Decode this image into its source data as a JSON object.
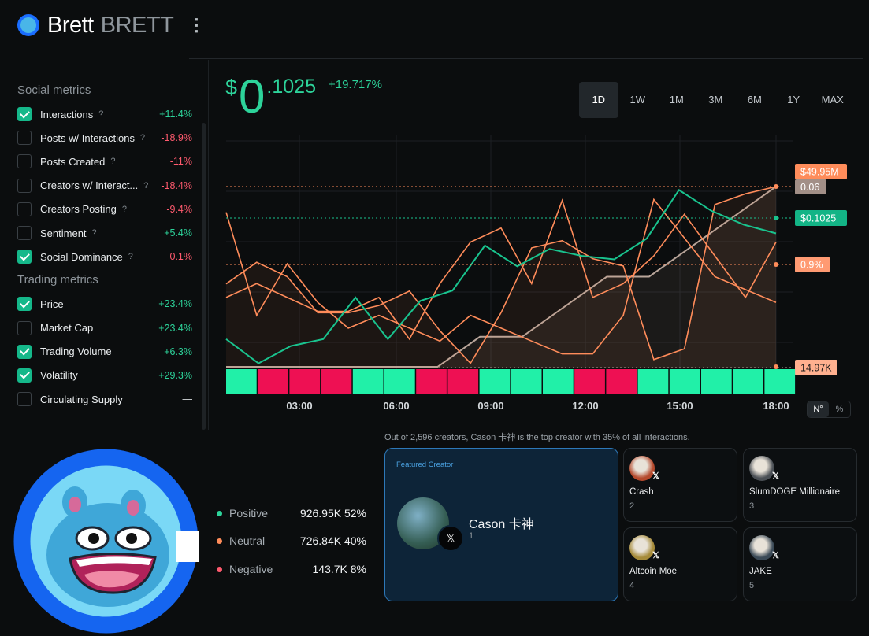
{
  "header": {
    "title": "Brett",
    "ticker": "BRETT"
  },
  "sidebar": {
    "social_title": "Social metrics",
    "trading_title": "Trading metrics",
    "social": [
      {
        "label": "Interactions",
        "help": "?",
        "value": "+11.4%",
        "checked": true,
        "sign": "pos"
      },
      {
        "label": "Posts w/ Interactions",
        "help": "?",
        "value": "-18.9%",
        "checked": false,
        "sign": "neg"
      },
      {
        "label": "Posts Created",
        "help": "?",
        "value": "-11%",
        "checked": false,
        "sign": "neg"
      },
      {
        "label": "Creators w/ Interact...",
        "help": "?",
        "value": "-18.4%",
        "checked": false,
        "sign": "neg"
      },
      {
        "label": "Creators Posting",
        "help": "?",
        "value": "-9.4%",
        "checked": false,
        "sign": "neg"
      },
      {
        "label": "Sentiment",
        "help": "?",
        "value": "+5.4%",
        "checked": false,
        "sign": "pos"
      },
      {
        "label": "Social Dominance",
        "help": "?",
        "value": "-0.1%",
        "checked": true,
        "sign": "neg"
      }
    ],
    "trading": [
      {
        "label": "Price",
        "help": "",
        "value": "+23.4%",
        "checked": true,
        "sign": "pos"
      },
      {
        "label": "Market Cap",
        "help": "",
        "value": "+23.4%",
        "checked": false,
        "sign": "pos"
      },
      {
        "label": "Trading Volume",
        "help": "",
        "value": "+6.3%",
        "checked": true,
        "sign": "pos"
      },
      {
        "label": "Volatility",
        "help": "",
        "value": "+29.3%",
        "checked": true,
        "sign": "pos"
      },
      {
        "label": "Circulating Supply",
        "help": "",
        "value": "—",
        "checked": false,
        "sign": "neu"
      }
    ]
  },
  "price": {
    "symbol": "$",
    "integer": "0",
    "decimals": ".1025",
    "change": "+19.717%"
  },
  "ranges": {
    "items": [
      "1D",
      "1W",
      "1M",
      "3M",
      "6M",
      "1Y",
      "MAX"
    ],
    "active": "1D"
  },
  "chart_data": {
    "type": "line",
    "x_ticks": [
      "03:00",
      "06:00",
      "09:00",
      "12:00",
      "15:00",
      "18:00"
    ],
    "series": [
      {
        "name": "Price",
        "color": "#19c38e",
        "label": "$0.1025",
        "values": [
          0.072,
          0.065,
          0.07,
          0.072,
          0.084,
          0.072,
          0.083,
          0.086,
          0.099,
          0.093,
          0.098,
          0.096,
          0.095,
          0.101,
          0.115,
          0.109,
          0.105,
          0.1025
        ]
      },
      {
        "name": "Volatility",
        "color": "#ff8c5a",
        "label": "$49.95M",
        "values": [
          23,
          29,
          25,
          15,
          15,
          17,
          21,
          10,
          1,
          15,
          33,
          35,
          30,
          28,
          2,
          5,
          45,
          48,
          50
        ]
      },
      {
        "name": "Social Dominance",
        "color": "#b8a59a",
        "label": "0.06",
        "values": [
          0.0,
          0.0,
          0.0,
          0.0,
          0.0,
          0.0,
          0.01,
          0.01,
          0.02,
          0.03,
          0.03,
          0.04,
          0.05,
          0.06
        ]
      },
      {
        "name": "Interactions",
        "color": "#ff8c5a",
        "label": "0.9%",
        "values": [
          0.5,
          0.6,
          0.5,
          0.4,
          0.4,
          0.5,
          0.2,
          0.6,
          0.9,
          1.0,
          0.6,
          1.2,
          0.5,
          0.6,
          0.8,
          1.1,
          0.8,
          0.5,
          0.9
        ]
      },
      {
        "name": "Trading Volume",
        "color": "#ff8c5a",
        "label": "14.97K",
        "values": [
          12,
          4,
          8,
          5,
          3,
          4,
          3,
          2,
          4,
          3,
          2,
          1,
          1,
          4,
          13,
          10,
          7,
          6,
          5
        ]
      }
    ],
    "sentiment_bars": [
      "pos",
      "neg",
      "neg",
      "neg",
      "pos",
      "pos",
      "neg",
      "neg",
      "pos",
      "pos",
      "pos",
      "neg",
      "neg",
      "pos",
      "pos",
      "pos",
      "pos",
      "pos"
    ],
    "scale_toggle": [
      "N°",
      "%"
    ]
  },
  "summary": "Out of 2,596 creators, Cason 卡神 is the top creator with 35% of all interactions.",
  "featured": {
    "tag": "Featured Creator",
    "name": "Cason 卡神",
    "rank": "1",
    "x_icon": "𝕏"
  },
  "creators": [
    {
      "name": "Crash",
      "rank": "2",
      "avatar_color": "#b54a2d"
    },
    {
      "name": "SlumDOGE Millionaire",
      "rank": "3",
      "avatar_color": "#4a4f55"
    },
    {
      "name": "Altcoin Moe",
      "rank": "4",
      "avatar_color": "#a68b3a"
    },
    {
      "name": "JAKE",
      "rank": "5",
      "avatar_color": "#3b4a57"
    }
  ],
  "sentiment": [
    {
      "label": "Positive",
      "value": "926.95K 52%",
      "color": "#2dd39a"
    },
    {
      "label": "Neutral",
      "value": "726.84K 40%",
      "color": "#ff8c5a"
    },
    {
      "label": "Negative",
      "value": "143.7K 8%",
      "color": "#ff5a6e"
    }
  ]
}
